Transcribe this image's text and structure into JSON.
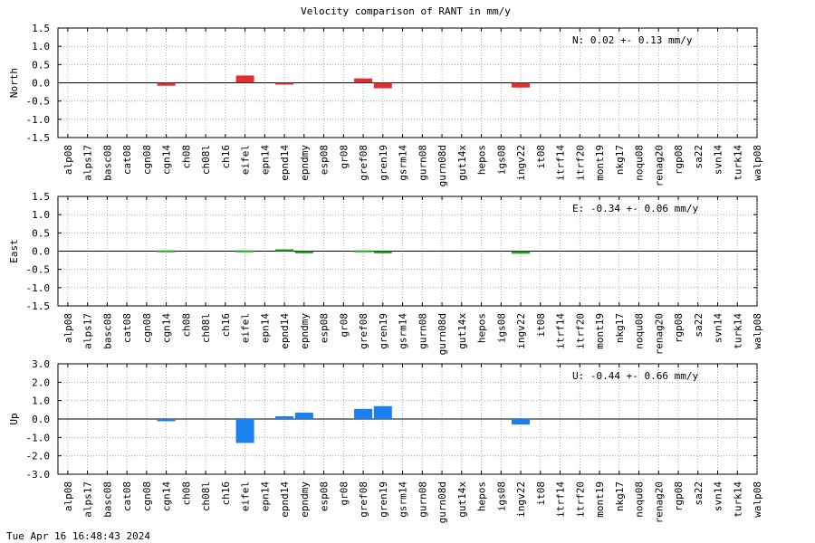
{
  "title": "Velocity comparison of RANT in mm/y",
  "timestamp": "Tue Apr 16 16:48:43 2024",
  "colors": {
    "North": "#e03030",
    "East": "#20a020",
    "Up": "#1a80f0"
  },
  "chart_data": [
    {
      "type": "bar",
      "ylabel": "North",
      "annotation": "N:   0.02 +-  0.13 mm/y",
      "ylim": [
        -1.5,
        1.5
      ],
      "yticks": [
        "1.5",
        "1.0",
        "0.5",
        "0.0",
        "-0.5",
        "-1.0",
        "-1.5"
      ],
      "categories": [
        "alp08",
        "alps17",
        "basc08",
        "cat08",
        "cgn08",
        "cgn14",
        "ch08",
        "ch08l",
        "ch16",
        "eifel",
        "epn14",
        "epnd14",
        "epndmy",
        "esp08",
        "gr08",
        "gref08",
        "gren19",
        "gsrm14",
        "gurn08",
        "gurn08d",
        "gut14x",
        "hepos",
        "igs08",
        "ingv22",
        "it08",
        "itrf14",
        "itrf20",
        "mont19",
        "nkg17",
        "noqu08",
        "renag20",
        "rgp08",
        "sa22",
        "svn14",
        "turk14",
        "walp08"
      ],
      "values": [
        0,
        0,
        0,
        0,
        0,
        -0.08,
        0,
        0,
        0,
        0.2,
        0,
        -0.05,
        0,
        0,
        0,
        0.12,
        -0.15,
        0,
        0,
        0,
        0,
        0,
        0,
        -0.13,
        0,
        0,
        0,
        0,
        0,
        0,
        0,
        0,
        0,
        0,
        0,
        0
      ]
    },
    {
      "type": "bar",
      "ylabel": "East",
      "annotation": "E:  -0.34 +-  0.06 mm/y",
      "ylim": [
        -1.5,
        1.5
      ],
      "yticks": [
        "1.5",
        "1.0",
        "0.5",
        "0.0",
        "-0.5",
        "-1.0",
        "-1.5"
      ],
      "categories": [
        "alp08",
        "alps17",
        "basc08",
        "cat08",
        "cgn08",
        "cgn14",
        "ch08",
        "ch08l",
        "ch16",
        "eifel",
        "epn14",
        "epnd14",
        "epndmy",
        "esp08",
        "gr08",
        "gref08",
        "gren19",
        "gsrm14",
        "gurn08",
        "gurn08d",
        "gut14x",
        "hepos",
        "igs08",
        "ingv22",
        "it08",
        "itrf14",
        "itrf20",
        "mont19",
        "nkg17",
        "noqu08",
        "renag20",
        "rgp08",
        "sa22",
        "svn14",
        "turk14",
        "walp08"
      ],
      "values": [
        0,
        0,
        0,
        0,
        0,
        0.02,
        0,
        0,
        0,
        0.02,
        0,
        0.05,
        -0.06,
        0,
        0,
        0.02,
        -0.06,
        0,
        0,
        0,
        0,
        0,
        0,
        -0.07,
        0,
        0,
        0,
        0,
        0,
        0,
        0,
        0,
        0,
        0,
        0,
        0
      ]
    },
    {
      "type": "bar",
      "ylabel": "Up",
      "annotation": "U:  -0.44 +-  0.66 mm/y",
      "ylim": [
        -3.0,
        3.0
      ],
      "yticks": [
        "3.0",
        "2.0",
        "1.0",
        "0.0",
        "-1.0",
        "-2.0",
        "-3.0"
      ],
      "categories": [
        "alp08",
        "alps17",
        "basc08",
        "cat08",
        "cgn08",
        "cgn14",
        "ch08",
        "ch08l",
        "ch16",
        "eifel",
        "epn14",
        "epnd14",
        "epndmy",
        "esp08",
        "gr08",
        "gref08",
        "gren19",
        "gsrm14",
        "gurn08",
        "gurn08d",
        "gut14x",
        "hepos",
        "igs08",
        "ingv22",
        "it08",
        "itrf14",
        "itrf20",
        "mont19",
        "nkg17",
        "noqu08",
        "renag20",
        "rgp08",
        "sa22",
        "svn14",
        "turk14",
        "walp08"
      ],
      "values": [
        0,
        0,
        0,
        0,
        0,
        -0.12,
        0,
        0,
        0,
        -1.3,
        0,
        0.15,
        0.35,
        0,
        0,
        0.55,
        0.7,
        0,
        0,
        0,
        0,
        0,
        0,
        -0.3,
        0,
        0,
        0,
        0,
        0,
        0,
        0,
        0,
        0,
        0,
        0,
        0
      ]
    }
  ]
}
